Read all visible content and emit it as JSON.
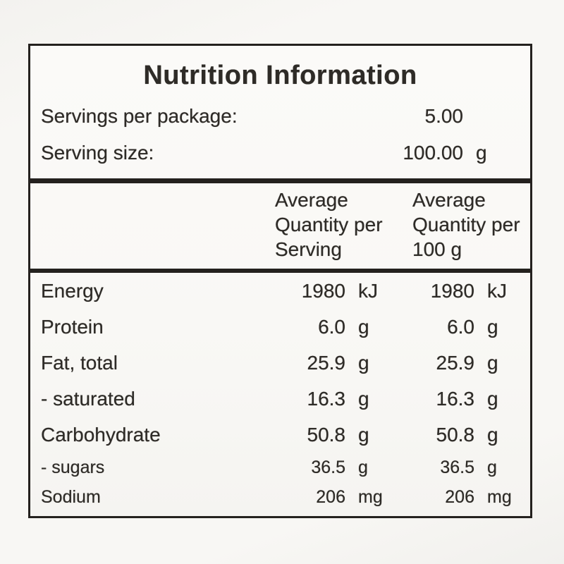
{
  "label": {
    "title": "Nutrition Information",
    "top_rows": {
      "servings_per_package": {
        "label": "Servings per package:",
        "value": "5.00",
        "unit": ""
      },
      "serving_size": {
        "label": "Serving size:",
        "value": "100.00",
        "unit": "g"
      }
    },
    "column_headers": {
      "per_serving": {
        "line1": "Average",
        "line2": "Quantity per",
        "line3": "Serving"
      },
      "per_100g": {
        "line1": "Average",
        "line2": "Quantity per",
        "line3": "100 g"
      }
    },
    "rows": [
      {
        "name": "Energy",
        "per_serving": "1980",
        "per_serving_unit": "kJ",
        "per_100g": "1980",
        "per_100g_unit": "kJ"
      },
      {
        "name": "Protein",
        "per_serving": "6.0",
        "per_serving_unit": "g",
        "per_100g": "6.0",
        "per_100g_unit": "g"
      },
      {
        "name": "Fat, total",
        "per_serving": "25.9",
        "per_serving_unit": "g",
        "per_100g": "25.9",
        "per_100g_unit": "g"
      },
      {
        "name": "- saturated",
        "per_serving": "16.3",
        "per_serving_unit": "g",
        "per_100g": "16.3",
        "per_100g_unit": "g"
      },
      {
        "name": "Carbohydrate",
        "per_serving": "50.8",
        "per_serving_unit": "g",
        "per_100g": "50.8",
        "per_100g_unit": "g"
      },
      {
        "name": "- sugars",
        "per_serving": "36.5",
        "per_serving_unit": "g",
        "per_100g": "36.5",
        "per_100g_unit": "g"
      },
      {
        "name": "Sodium",
        "per_serving": "206",
        "per_serving_unit": "mg",
        "per_100g": "206",
        "per_100g_unit": "mg"
      }
    ],
    "colors": {
      "ink": "#2e2b27",
      "border": "#24211e",
      "paper": "#faf9f6"
    }
  }
}
